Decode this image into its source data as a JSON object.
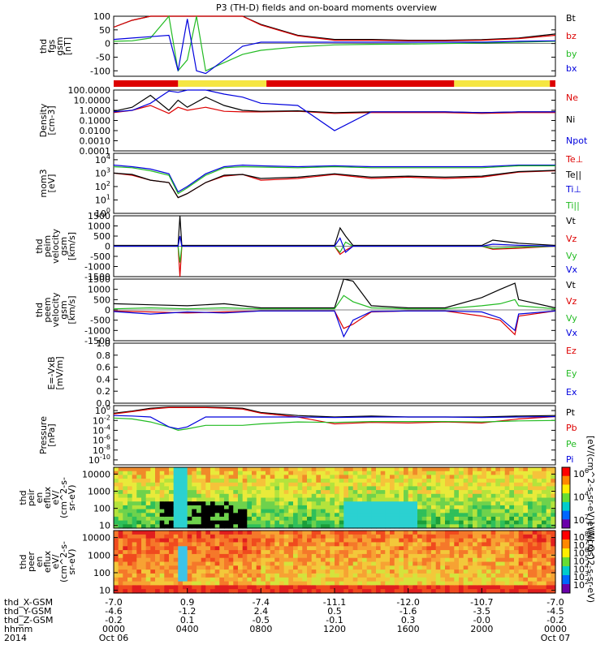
{
  "title": "P3 (TH-D) fields and on-board moments overview",
  "chart_data": [
    {
      "type": "line",
      "panel": "fgs",
      "ylabel": [
        "thd",
        "fgs",
        "gsm",
        "[nT]"
      ],
      "yticks": [
        "100",
        "50",
        "0",
        "-50",
        "-100"
      ],
      "ylim": [
        -120,
        100
      ],
      "legend": [
        {
          "name": "Bt",
          "color": "#000000"
        },
        {
          "name": "bz",
          "color": "#dd0000"
        },
        {
          "name": "by",
          "color": "#22bb22"
        },
        {
          "name": "bx",
          "color": "#0000dd"
        }
      ],
      "x": [
        0,
        1,
        2,
        3,
        3.5,
        4,
        4.5,
        5,
        6,
        7,
        8,
        10,
        12,
        14,
        16,
        18,
        20,
        22,
        24
      ],
      "series": [
        {
          "name": "Bt",
          "values": [
            60,
            85,
            100,
            100,
            100,
            100,
            100,
            100,
            100,
            100,
            70,
            30,
            15,
            15,
            12,
            12,
            14,
            20,
            35
          ]
        },
        {
          "name": "bz",
          "values": [
            60,
            85,
            100,
            100,
            100,
            100,
            100,
            100,
            100,
            100,
            68,
            28,
            12,
            12,
            10,
            10,
            12,
            18,
            30
          ]
        },
        {
          "name": "by",
          "values": [
            8,
            10,
            20,
            100,
            -100,
            -60,
            100,
            -100,
            -70,
            -40,
            -25,
            -12,
            -5,
            -3,
            -2,
            0,
            2,
            5,
            8
          ]
        },
        {
          "name": "bx",
          "values": [
            15,
            20,
            25,
            30,
            -100,
            90,
            -100,
            -110,
            -60,
            -10,
            5,
            5,
            5,
            5,
            5,
            5,
            5,
            8,
            10
          ]
        }
      ]
    },
    {
      "type": "line",
      "panel": "density",
      "ylabel": [
        "Density",
        "[cm-3]"
      ],
      "yticks": [
        "100.0000",
        "10.0000",
        "1.0000",
        "0.1000",
        "0.0100",
        "0.0010",
        "0.0001"
      ],
      "ylim": [
        0.0001,
        100
      ],
      "log": true,
      "legend": [
        {
          "name": "Ne",
          "color": "#dd0000"
        },
        {
          "name": "Ni",
          "color": "#000000"
        },
        {
          "name": "Npot",
          "color": "#0000dd"
        }
      ],
      "x": [
        0,
        1,
        2,
        3,
        3.5,
        4,
        5,
        6,
        7,
        8,
        10,
        12,
        14,
        16,
        18,
        20,
        22,
        24
      ],
      "series": [
        {
          "name": "Ne",
          "values": [
            0.6,
            1.0,
            3,
            0.5,
            2,
            1.0,
            2,
            0.8,
            0.7,
            0.7,
            0.8,
            0.5,
            0.6,
            0.6,
            0.6,
            0.5,
            0.6,
            0.6
          ]
        },
        {
          "name": "Ni",
          "values": [
            0.8,
            2,
            30,
            1.0,
            10,
            2,
            20,
            3,
            1.0,
            0.8,
            0.9,
            0.6,
            0.7,
            0.7,
            0.7,
            0.6,
            0.7,
            0.7
          ]
        },
        {
          "name": "Npot",
          "values": [
            0.7,
            1.0,
            5,
            80,
            60,
            100,
            100,
            40,
            20,
            5,
            3,
            0.01,
            0.7,
            0.7,
            0.7,
            0.6,
            0.7,
            0.7
          ]
        }
      ]
    },
    {
      "type": "line",
      "panel": "temperature",
      "ylabel": [
        "mom3",
        "[eV]"
      ],
      "yticks": [
        "10^4",
        "10^3",
        "10^2",
        "10^1",
        "10^0"
      ],
      "ylim": [
        1,
        30000
      ],
      "log": true,
      "legend": [
        {
          "name": "Te⊥",
          "color": "#dd0000"
        },
        {
          "name": "Te||",
          "color": "#000000"
        },
        {
          "name": "Ti⊥",
          "color": "#0000dd"
        },
        {
          "name": "Ti||",
          "color": "#22bb22"
        }
      ],
      "x": [
        0,
        1,
        2,
        3,
        3.5,
        4,
        5,
        6,
        7,
        8,
        10,
        12,
        14,
        16,
        18,
        20,
        22,
        24
      ],
      "series": [
        {
          "name": "Te⊥",
          "values": [
            1000,
            700,
            300,
            200,
            15,
            30,
            200,
            600,
            800,
            300,
            400,
            800,
            400,
            500,
            400,
            500,
            1200,
            1500
          ]
        },
        {
          "name": "Te||",
          "values": [
            1000,
            800,
            300,
            200,
            15,
            30,
            200,
            700,
            800,
            400,
            500,
            900,
            500,
            600,
            500,
            600,
            1300,
            1600
          ]
        },
        {
          "name": "Ti⊥",
          "values": [
            4000,
            3000,
            2000,
            900,
            40,
            100,
            900,
            3000,
            4000,
            3500,
            3000,
            3500,
            3000,
            3000,
            3000,
            3000,
            4000,
            4000
          ]
        },
        {
          "name": "Ti||",
          "values": [
            3000,
            2500,
            1500,
            700,
            30,
            80,
            700,
            2500,
            3000,
            2800,
            2500,
            3000,
            2500,
            2500,
            2500,
            2500,
            3500,
            3500
          ]
        }
      ]
    },
    {
      "type": "line",
      "panel": "peim_velocity",
      "ylabel": [
        "thd",
        "peim",
        "velocity",
        "gsm",
        "[km/s]"
      ],
      "yticks": [
        "1500",
        "1000",
        "500",
        "0",
        "-500",
        "-1000",
        "-1500"
      ],
      "ylim": [
        -1500,
        1500
      ],
      "legend": [
        {
          "name": "Vt",
          "color": "#000000"
        },
        {
          "name": "Vz",
          "color": "#dd0000"
        },
        {
          "name": "Vy",
          "color": "#22bb22"
        },
        {
          "name": "Vx",
          "color": "#0000dd"
        }
      ],
      "x": [
        0,
        3.5,
        3.6,
        3.7,
        4,
        8,
        12,
        12.3,
        12.6,
        13,
        16,
        20,
        20.6,
        22,
        24
      ],
      "series": [
        {
          "name": "Vt",
          "values": [
            40,
            40,
            1500,
            40,
            40,
            40,
            40,
            900,
            500,
            40,
            40,
            40,
            300,
            150,
            40
          ]
        },
        {
          "name": "Vz",
          "values": [
            0,
            0,
            -1500,
            0,
            0,
            0,
            0,
            -400,
            -200,
            0,
            0,
            0,
            -150,
            -100,
            0
          ]
        },
        {
          "name": "Vy",
          "values": [
            0,
            0,
            -800,
            0,
            0,
            0,
            0,
            -300,
            200,
            0,
            0,
            0,
            -100,
            -50,
            0
          ]
        },
        {
          "name": "Vx",
          "values": [
            0,
            0,
            500,
            0,
            0,
            0,
            0,
            400,
            -300,
            0,
            0,
            0,
            100,
            50,
            0
          ]
        }
      ]
    },
    {
      "type": "line",
      "panel": "peem_velocity",
      "ylabel": [
        "thd",
        "peem",
        "velocity",
        "gsm",
        "[km/s]"
      ],
      "yticks": [
        "1500",
        "1000",
        "500",
        "0",
        "-500",
        "-1000",
        "-1500"
      ],
      "ylim": [
        -1500,
        1500
      ],
      "legend": [
        {
          "name": "Vt",
          "color": "#000000"
        },
        {
          "name": "Vz",
          "color": "#dd0000"
        },
        {
          "name": "Vy",
          "color": "#22bb22"
        },
        {
          "name": "Vx",
          "color": "#0000dd"
        }
      ],
      "x": [
        0,
        2,
        4,
        6,
        8,
        10,
        12,
        12.5,
        13,
        14,
        16,
        18,
        20,
        21,
        21.8,
        22,
        24
      ],
      "series": [
        {
          "name": "Vt",
          "values": [
            300,
            250,
            200,
            300,
            100,
            100,
            100,
            1500,
            1400,
            200,
            100,
            100,
            600,
            1000,
            1300,
            500,
            100
          ]
        },
        {
          "name": "Vz",
          "values": [
            -50,
            -100,
            -150,
            -100,
            -50,
            -50,
            -50,
            -900,
            -700,
            -100,
            -50,
            -50,
            -300,
            -500,
            -1200,
            -300,
            -50
          ]
        },
        {
          "name": "Vy",
          "values": [
            50,
            100,
            50,
            100,
            50,
            50,
            50,
            700,
            400,
            100,
            50,
            50,
            200,
            300,
            500,
            200,
            50
          ]
        },
        {
          "name": "Vx",
          "values": [
            -80,
            -200,
            -100,
            -150,
            -50,
            -50,
            -50,
            -1300,
            -500,
            -80,
            -50,
            -50,
            -100,
            -400,
            -1000,
            -200,
            -50
          ]
        }
      ]
    },
    {
      "type": "line",
      "panel": "efield",
      "ylabel": [
        "E=-VxB",
        "[mV/m]"
      ],
      "yticks": [
        "1.0",
        "0.8",
        "0.6",
        "0.4",
        "0.2",
        "0.0"
      ],
      "ylim": [
        0,
        1
      ],
      "legend": [
        {
          "name": "Ez",
          "color": "#dd0000"
        },
        {
          "name": "Ey",
          "color": "#22bb22"
        },
        {
          "name": "Ex",
          "color": "#0000dd"
        }
      ],
      "series": []
    },
    {
      "type": "line",
      "panel": "pressure",
      "ylabel": [
        "Pressure",
        "[nPa]"
      ],
      "yticks": [
        "10^0",
        "10^-2",
        "10^-4",
        "10^-6",
        "10^-8",
        "10^-10"
      ],
      "ylim": [
        1e-11,
        10
      ],
      "log": true,
      "legend": [
        {
          "name": "Pt",
          "color": "#000000"
        },
        {
          "name": "Pb",
          "color": "#dd0000"
        },
        {
          "name": "Pe",
          "color": "#22bb22"
        },
        {
          "name": "Pi",
          "color": "#0000dd"
        }
      ],
      "x": [
        0,
        1,
        2,
        3,
        3.5,
        4,
        5,
        6,
        7,
        8,
        10,
        12,
        14,
        16,
        18,
        20,
        22,
        24
      ],
      "series": [
        {
          "name": "Pt",
          "values": [
            0.3,
            0.8,
            3,
            5,
            5,
            5,
            5,
            4,
            3,
            0.4,
            0.1,
            0.05,
            0.08,
            0.05,
            0.05,
            0.05,
            0.08,
            0.1
          ]
        },
        {
          "name": "Pb",
          "values": [
            0.2,
            0.6,
            2,
            4,
            4,
            4,
            4,
            3,
            2,
            0.3,
            0.05,
            0.002,
            0.004,
            0.003,
            0.005,
            0.003,
            0.02,
            0.06
          ]
        },
        {
          "name": "Pe",
          "values": [
            0.03,
            0.02,
            0.005,
            0.0005,
            0.0001,
            0.0002,
            0.001,
            0.001,
            0.001,
            0.002,
            0.005,
            0.004,
            0.006,
            0.006,
            0.006,
            0.005,
            0.008,
            0.01
          ]
        },
        {
          "name": "Pi",
          "values": [
            0.1,
            0.08,
            0.05,
            0.0005,
            0.0002,
            0.0005,
            0.05,
            0.05,
            0.05,
            0.05,
            0.05,
            0.04,
            0.05,
            0.05,
            0.05,
            0.04,
            0.05,
            0.06
          ]
        }
      ]
    },
    {
      "type": "heatmap",
      "panel": "peir_eflux",
      "ylabel": [
        "thd",
        "peir",
        "en",
        "eflux",
        "eV/",
        "(cm^2-s-",
        "sr-eV)"
      ],
      "yticks": [
        "10000",
        "1000",
        "100",
        "10"
      ],
      "ylim": [
        7,
        25000
      ],
      "log": true,
      "colorbar_ticks": [
        "10^6",
        "10^4",
        "10^2"
      ],
      "colorbar_label": "[eV/(cm^2-s-sr-eV)] (All Qs)"
    },
    {
      "type": "heatmap",
      "panel": "peer_eflux",
      "ylabel": [
        "thd",
        "peer",
        "en",
        "eflux",
        "eV/",
        "(cm^2-s-",
        "sr-eV)"
      ],
      "yticks": [
        "10000",
        "1000",
        "100",
        "10"
      ],
      "ylim": [
        7,
        25000
      ],
      "log": true,
      "colorbar_ticks": [
        "10^8",
        "10^7",
        "10^6",
        "10^5",
        "10^4",
        "10^3",
        "10^2"
      ],
      "colorbar_label": "eV/(cm^2-s-sr-eV)"
    }
  ],
  "mode_bar": [
    {
      "start": 0,
      "end": 3.5,
      "color": "#dd0000"
    },
    {
      "start": 3.5,
      "end": 8.3,
      "color": "#f5e642"
    },
    {
      "start": 8.3,
      "end": 18.5,
      "color": "#dd0000"
    },
    {
      "start": 18.5,
      "end": 23.7,
      "color": "#f5e642"
    },
    {
      "start": 23.7,
      "end": 24,
      "color": "#dd0000"
    }
  ],
  "xaxis": {
    "row_labels": [
      "thd_X-GSM",
      "thd_Y-GSM",
      "thd_Z-GSM",
      "hhmm",
      "2014"
    ],
    "ticks": [
      {
        "hour": 0,
        "x": "-7.0",
        "y": "-4.6",
        "z": "-0.2",
        "hhmm": "0000",
        "date": "Oct 06"
      },
      {
        "hour": 4,
        "x": "0.9",
        "y": "-1.2",
        "z": "0.1",
        "hhmm": "0400",
        "date": ""
      },
      {
        "hour": 8,
        "x": "-7.4",
        "y": "2.4",
        "z": "-0.5",
        "hhmm": "0800",
        "date": ""
      },
      {
        "hour": 12,
        "x": "-11.1",
        "y": "0.5",
        "z": "-0.1",
        "hhmm": "1200",
        "date": ""
      },
      {
        "hour": 16,
        "x": "-12.0",
        "y": "-1.6",
        "z": "0.3",
        "hhmm": "1600",
        "date": ""
      },
      {
        "hour": 20,
        "x": "-10.7",
        "y": "-3.5",
        "z": "-0.0",
        "hhmm": "2000",
        "date": ""
      },
      {
        "hour": 24,
        "x": "-7.0",
        "y": "-4.5",
        "z": "-0.2",
        "hhmm": "0000",
        "date": "Oct 07"
      }
    ]
  }
}
